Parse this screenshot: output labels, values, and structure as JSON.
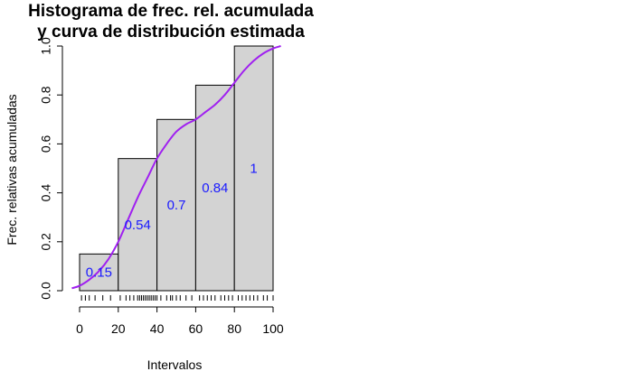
{
  "chart_data": {
    "type": "bar",
    "title_lines": [
      "Histograma de frec. rel. acumulada",
      "y curva de distribución estimada"
    ],
    "xlabel": "Intervalos",
    "ylabel": "Frec. relativas acumuladas",
    "xlim": [
      -2,
      104
    ],
    "ylim": [
      0,
      1
    ],
    "x_ticks": [
      0,
      20,
      40,
      60,
      80,
      100
    ],
    "x_tick_labels": [
      "0",
      "20",
      "40",
      "60",
      "80",
      "100"
    ],
    "y_ticks": [
      0,
      0.2,
      0.4,
      0.6,
      0.8,
      1
    ],
    "y_tick_labels": [
      "0.0",
      "0.2",
      "0.4",
      "0.6",
      "0.8",
      "1.0"
    ],
    "bins": [
      {
        "from": 0,
        "to": 20,
        "value": 0.15,
        "label": "0.15"
      },
      {
        "from": 20,
        "to": 40,
        "value": 0.54,
        "label": "0.54"
      },
      {
        "from": 40,
        "to": 60,
        "value": 0.7,
        "label": "0.7"
      },
      {
        "from": 60,
        "to": 80,
        "value": 0.84,
        "label": "0.84"
      },
      {
        "from": 80,
        "to": 100,
        "value": 1.0,
        "label": "1"
      }
    ],
    "curve": {
      "x": [
        -4,
        0,
        5,
        10,
        15,
        20,
        25,
        30,
        35,
        40,
        45,
        50,
        55,
        60,
        65,
        70,
        75,
        80,
        85,
        90,
        95,
        100,
        104
      ],
      "y": [
        0.01,
        0.02,
        0.045,
        0.08,
        0.13,
        0.2,
        0.29,
        0.38,
        0.46,
        0.54,
        0.6,
        0.65,
        0.68,
        0.7,
        0.73,
        0.76,
        0.8,
        0.85,
        0.9,
        0.94,
        0.97,
        0.99,
        1.0
      ]
    },
    "rug_x": [
      1,
      3,
      5,
      8,
      12,
      16,
      21,
      24,
      26,
      28,
      30,
      31,
      32,
      33,
      34,
      35,
      36,
      37,
      38,
      39,
      40,
      42,
      45,
      47,
      48,
      50,
      52,
      55,
      58,
      62,
      64,
      66,
      68,
      70,
      73,
      75,
      77,
      79,
      82,
      84,
      86,
      88,
      90,
      92,
      95,
      97,
      100
    ],
    "colors": {
      "bar_fill": "#d3d3d3",
      "bar_stroke": "#000000",
      "curve": "#a020f0",
      "bar_label": "#1a1aff"
    }
  }
}
